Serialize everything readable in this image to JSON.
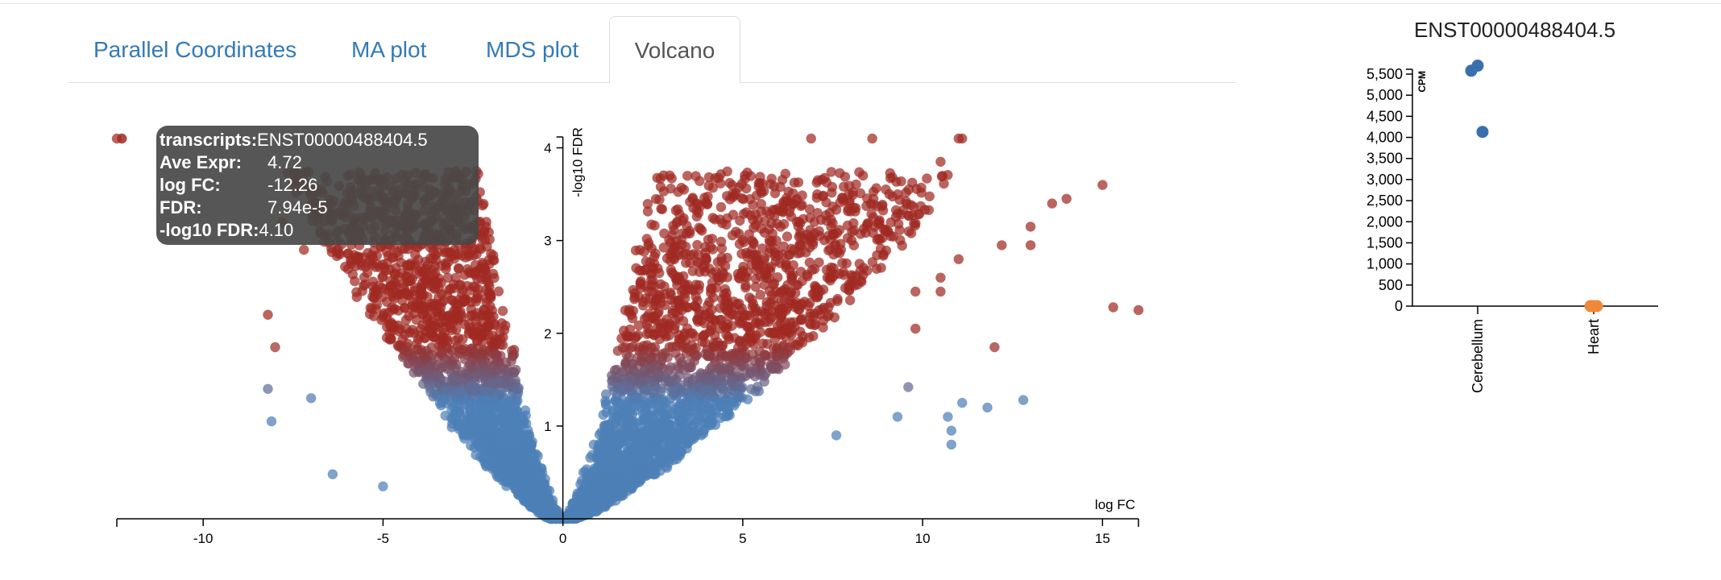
{
  "tabs": [
    {
      "label": "Parallel Coordinates",
      "active": false
    },
    {
      "label": "MA plot",
      "active": false
    },
    {
      "label": "MDS plot",
      "active": false
    },
    {
      "label": "Volcano",
      "active": true
    }
  ],
  "tooltip": {
    "rows": [
      {
        "key": "transcripts:",
        "value": "ENST00000488404.5"
      },
      {
        "key": "Ave Expr:",
        "value": "4.72"
      },
      {
        "key": "log FC:",
        "value": "-12.26"
      },
      {
        "key": "FDR:",
        "value": "7.94e-5"
      },
      {
        "key": "-log10 FDR:",
        "value": "4.10"
      }
    ]
  },
  "colors": {
    "significant": "#a02a22",
    "not_significant": "#4e7fb7",
    "cerebellum": "#3a6fad",
    "heart": "#f0883a",
    "tab_link": "#337ab7"
  },
  "chart_data": [
    {
      "type": "scatter",
      "name": "volcano",
      "xlabel": "log FC",
      "ylabel": "-log10 FDR",
      "xlim": [
        -12.4,
        16
      ],
      "ylim": [
        0,
        4.1
      ],
      "xticks": [
        -10,
        -5,
        0,
        5,
        10,
        15
      ],
      "xtick_labels": [
        "-10",
        "-5",
        "0",
        "5",
        "10",
        "15"
      ],
      "yticks": [
        1,
        2,
        3,
        4
      ],
      "ytick_labels": [
        "1",
        "2",
        "3",
        "4"
      ],
      "significance_threshold": 1.35,
      "highlighted_point": {
        "x": -12.26,
        "y": 4.1
      },
      "outlier_points": [
        {
          "x": 15.3,
          "y": 2.28
        },
        {
          "x": 16.0,
          "y": 2.25
        },
        {
          "x": 15.0,
          "y": 3.6
        },
        {
          "x": 14.0,
          "y": 3.45
        },
        {
          "x": 13.6,
          "y": 3.4
        },
        {
          "x": 13.0,
          "y": 3.15
        },
        {
          "x": 13.0,
          "y": 2.95
        },
        {
          "x": 12.2,
          "y": 2.95
        },
        {
          "x": 12.0,
          "y": 1.85
        },
        {
          "x": 12.8,
          "y": 1.28
        },
        {
          "x": 11.8,
          "y": 1.2
        },
        {
          "x": 11.1,
          "y": 1.25
        },
        {
          "x": 10.7,
          "y": 1.1
        },
        {
          "x": 10.8,
          "y": 0.95
        },
        {
          "x": 10.8,
          "y": 0.8
        },
        {
          "x": 9.6,
          "y": 1.42
        },
        {
          "x": 9.3,
          "y": 1.1
        },
        {
          "x": 11.1,
          "y": 4.1
        },
        {
          "x": 11.0,
          "y": 4.1
        },
        {
          "x": 10.5,
          "y": 3.85
        },
        {
          "x": 6.9,
          "y": 4.1
        },
        {
          "x": 8.6,
          "y": 4.1
        },
        {
          "x": 11.0,
          "y": 2.8
        },
        {
          "x": 10.5,
          "y": 2.6
        },
        {
          "x": 9.8,
          "y": 2.45
        },
        {
          "x": 10.5,
          "y": 2.45
        },
        {
          "x": 9.8,
          "y": 2.05
        },
        {
          "x": 7.6,
          "y": 0.9
        },
        {
          "x": -12.4,
          "y": 4.1
        },
        {
          "x": -8.0,
          "y": 1.85
        },
        {
          "x": -8.2,
          "y": 2.2
        },
        {
          "x": -8.2,
          "y": 1.4
        },
        {
          "x": -8.1,
          "y": 1.05
        },
        {
          "x": -6.4,
          "y": 0.48
        },
        {
          "x": -5.0,
          "y": 0.35
        },
        {
          "x": -7.0,
          "y": 1.3
        },
        {
          "x": -7.2,
          "y": 2.9
        },
        {
          "x": -7.8,
          "y": 3.2
        }
      ]
    },
    {
      "type": "scatter",
      "name": "strip",
      "title": "ENST00000488404.5",
      "ylabel": "CPM",
      "ylim": [
        0,
        5500
      ],
      "yticks": [
        0,
        500,
        1000,
        1500,
        2000,
        2500,
        3000,
        3500,
        4000,
        4500,
        5000,
        5500
      ],
      "ytick_labels": [
        "0",
        "500",
        "1,000",
        "1,500",
        "2,000",
        "2,500",
        "3,000",
        "3,500",
        "4,000",
        "4,500",
        "5,000",
        "5,500"
      ],
      "categories": [
        "Cerebellum",
        "Heart"
      ],
      "points": [
        {
          "category": "Cerebellum",
          "value": 5580
        },
        {
          "category": "Cerebellum",
          "value": 5700
        },
        {
          "category": "Cerebellum",
          "value": 4130
        },
        {
          "category": "Heart",
          "value": 0
        },
        {
          "category": "Heart",
          "value": 0
        },
        {
          "category": "Heart",
          "value": 0
        }
      ]
    }
  ]
}
